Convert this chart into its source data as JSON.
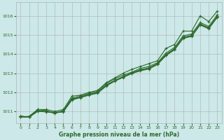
{
  "title": "Graphe pression niveau de la mer (hPa)",
  "bg_color": "#cce8e8",
  "plot_bg_color": "#cce8e8",
  "grid_color": "#b0b0b0",
  "line_color": "#2d6a2d",
  "marker_color": "#2d6a2d",
  "label_color": "#2d6a2d",
  "xlim": [
    -0.5,
    23.5
  ],
  "ylim": [
    1010.4,
    1016.7
  ],
  "yticks": [
    1011,
    1012,
    1013,
    1014,
    1015,
    1016
  ],
  "xticks": [
    0,
    1,
    2,
    3,
    4,
    5,
    6,
    7,
    8,
    9,
    10,
    11,
    12,
    13,
    14,
    15,
    16,
    17,
    18,
    19,
    20,
    21,
    22,
    23
  ],
  "series": [
    [
      1010.7,
      1010.75,
      1011.1,
      1011.1,
      1011.0,
      1011.1,
      1011.8,
      1011.85,
      1012.0,
      1012.1,
      1012.5,
      1012.75,
      1013.0,
      1013.2,
      1013.35,
      1013.5,
      1013.65,
      1014.3,
      1014.5,
      1015.2,
      1015.2,
      1016.0,
      1015.7,
      1016.25
    ],
    [
      1010.7,
      1010.7,
      1011.1,
      1011.05,
      1010.9,
      1011.05,
      1011.7,
      1011.8,
      1011.95,
      1012.05,
      1012.45,
      1012.7,
      1012.9,
      1013.05,
      1013.25,
      1013.35,
      1013.55,
      1014.05,
      1014.35,
      1014.95,
      1015.05,
      1015.65,
      1015.45,
      1016.05
    ],
    [
      1010.75,
      1010.72,
      1011.05,
      1011.0,
      1010.95,
      1011.0,
      1011.65,
      1011.75,
      1011.9,
      1012.0,
      1012.38,
      1012.62,
      1012.82,
      1013.02,
      1013.18,
      1013.28,
      1013.5,
      1013.98,
      1014.28,
      1014.88,
      1014.98,
      1015.58,
      1015.38,
      1015.98
    ],
    [
      1010.75,
      1010.7,
      1011.0,
      1010.98,
      1010.92,
      1010.98,
      1011.6,
      1011.72,
      1011.85,
      1011.95,
      1012.32,
      1012.58,
      1012.78,
      1012.98,
      1013.12,
      1013.22,
      1013.45,
      1013.92,
      1014.22,
      1014.82,
      1014.92,
      1015.52,
      1015.32,
      1015.92
    ],
    [
      1010.75,
      1010.7,
      1011.02,
      1010.98,
      1010.93,
      1011.0,
      1011.62,
      1011.75,
      1011.88,
      1011.98,
      1012.35,
      1012.6,
      1012.8,
      1013.0,
      1013.15,
      1013.25,
      1013.48,
      1013.95,
      1014.25,
      1014.85,
      1014.95,
      1015.55,
      1015.35,
      1015.95
    ]
  ]
}
